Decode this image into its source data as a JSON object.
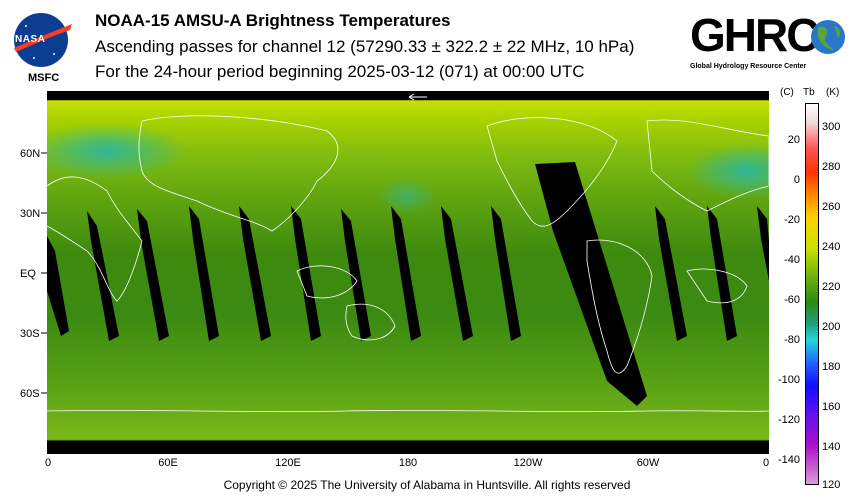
{
  "header": {
    "title": "NOAA-15 AMSU-A Brightness Temperatures",
    "subtitle": "Ascending passes for channel 12 (57290.33 ± 322.2 ± 22 MHz, 10 hPa)",
    "period": "For the 24-hour period beginning 2025-03-12 (071) at 00:00 UTC"
  },
  "logos": {
    "nasa": "NASA",
    "msfc": "MSFC",
    "ghrc": "GHRC",
    "ghrc_subtitle": "Global Hydrology Resource Center"
  },
  "map": {
    "lat_labels": [
      "60N",
      "30N",
      "EQ",
      "30S",
      "60S"
    ],
    "lon_labels": [
      "0",
      "60E",
      "120E",
      "180",
      "120W",
      "60W",
      "0"
    ],
    "background_color": "#3f8c12"
  },
  "colorbar": {
    "header_celsius": "(C)",
    "header_tb": "Tb",
    "header_kelvin": "(K)",
    "celsius_ticks": [
      "20",
      "0",
      "-20",
      "-40",
      "-60",
      "-80",
      "-100",
      "-120",
      "-140"
    ],
    "kelvin_ticks": [
      "300",
      "280",
      "260",
      "240",
      "220",
      "200",
      "180",
      "160",
      "140",
      "120"
    ],
    "kelvin_range": [
      120,
      310
    ]
  },
  "footer": {
    "copyright": "Copyright © 2025 The University of Alabama in Huntsville.  All rights reserved"
  }
}
